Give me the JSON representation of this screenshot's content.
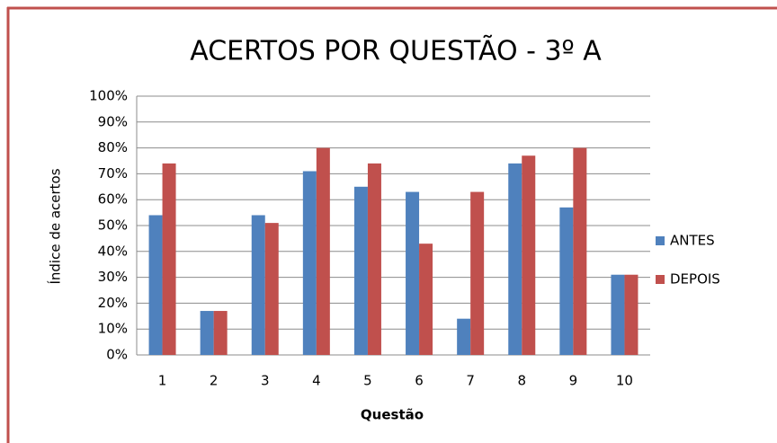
{
  "chart_data": {
    "type": "bar",
    "title": "ACERTOS POR QUESTÃO - 3º A",
    "x_label": "Questão",
    "y_label": "Índice de acertos",
    "categories": [
      "1",
      "2",
      "3",
      "4",
      "5",
      "6",
      "7",
      "8",
      "9",
      "10"
    ],
    "series": [
      {
        "name": "ANTES",
        "color": "#4f81bd",
        "values": [
          54,
          17,
          54,
          71,
          65,
          63,
          14,
          74,
          57,
          31
        ]
      },
      {
        "name": "DEPOIS",
        "color": "#c0504d",
        "values": [
          74,
          17,
          51,
          80,
          74,
          43,
          63,
          77,
          80,
          31
        ]
      }
    ],
    "ylim": [
      0,
      100
    ],
    "yticks": [
      {
        "value": 0,
        "label": "0%"
      },
      {
        "value": 10,
        "label": "10%"
      },
      {
        "value": 20,
        "label": "20%"
      },
      {
        "value": 30,
        "label": "30%"
      },
      {
        "value": 40,
        "label": "40%"
      },
      {
        "value": 50,
        "label": "50%"
      },
      {
        "value": 60,
        "label": "60%"
      },
      {
        "value": 70,
        "label": "70%"
      },
      {
        "value": 80,
        "label": "80%"
      },
      {
        "value": 90,
        "label": "90%"
      },
      {
        "value": 100,
        "label": "100%"
      }
    ],
    "grid": true,
    "legend": "right"
  }
}
